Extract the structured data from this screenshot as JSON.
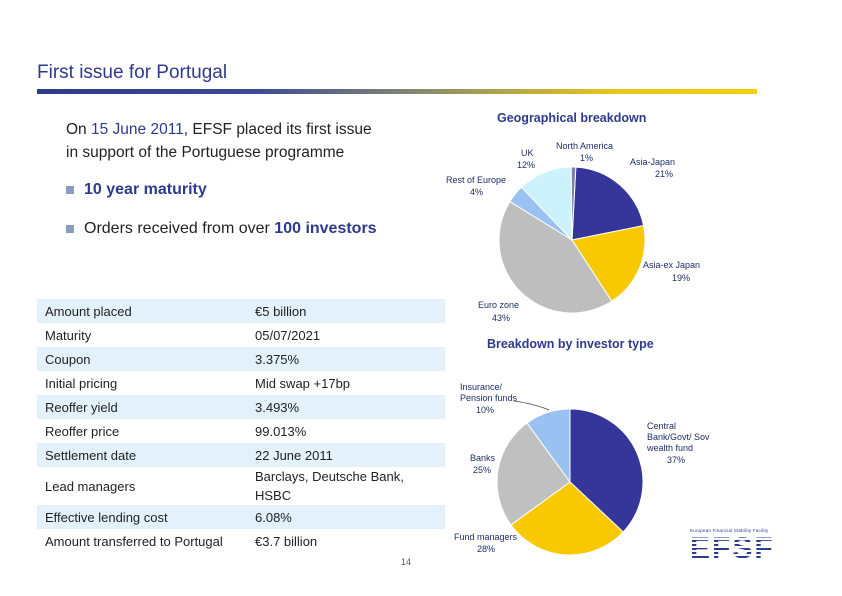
{
  "header": {
    "title": "First issue for Portugal"
  },
  "intro": {
    "prefix": "On ",
    "date": "15 June 2011",
    "suffix_line1": ", EFSF placed its first issue",
    "line2": "in support of the Portuguese programme"
  },
  "bullets": {
    "maturity": "10 year maturity",
    "orders_prefix": "Orders received from over ",
    "orders_highlight": "100 investors"
  },
  "terms": [
    {
      "label": "Amount placed",
      "value": "€5 billion"
    },
    {
      "label": "Maturity",
      "value": "05/07/2021"
    },
    {
      "label": "Coupon",
      "value": "3.375%"
    },
    {
      "label": "Initial pricing",
      "value": "Mid swap +17bp"
    },
    {
      "label": "Reoffer yield",
      "value": "3.493%"
    },
    {
      "label": "Reoffer price",
      "value": "99.013%"
    },
    {
      "label": "Settlement date",
      "value": "22 June 2011"
    },
    {
      "label": "Lead managers",
      "value": "Barclays, Deutsche Bank, HSBC"
    },
    {
      "label": "Effective lending cost",
      "value": "6.08%"
    },
    {
      "label": "Amount transferred to Portugal",
      "value": "€3.7 billion"
    }
  ],
  "page_number": "14",
  "logo": {
    "tagline": "European Financial Stability Facility",
    "word": "EFSF"
  },
  "chart_data": [
    {
      "type": "pie",
      "title": "Geographical breakdown",
      "series": [
        {
          "name": "Asia-Japan",
          "value": 21,
          "label": "21%",
          "color": "#35359a"
        },
        {
          "name": "Asia-ex Japan",
          "value": 19,
          "label": "19%",
          "color": "#f8c800"
        },
        {
          "name": "Euro zone",
          "value": 43,
          "label": "43%",
          "color": "#bebebe"
        },
        {
          "name": "Rest of Europe",
          "value": 4,
          "label": "4%",
          "color": "#99c2f2"
        },
        {
          "name": "UK",
          "value": 12,
          "label": "12%",
          "color": "#ccf2fc"
        },
        {
          "name": "North America",
          "value": 1,
          "label": "1%",
          "color": "#8080aa"
        }
      ]
    },
    {
      "type": "pie",
      "title": "Breakdown by investor type",
      "series": [
        {
          "name": "Central Bank/Govt/ Sov wealth fund",
          "value": 37,
          "label": "37%",
          "color": "#35359a"
        },
        {
          "name": "Fund managers",
          "value": 28,
          "label": "28%",
          "color": "#f8c800"
        },
        {
          "name": "Banks",
          "value": 25,
          "label": "25%",
          "color": "#c0c0c0"
        },
        {
          "name": "Insurance/ Pension funds",
          "value": 10,
          "label": "10%",
          "color": "#99c2f2"
        }
      ]
    }
  ]
}
